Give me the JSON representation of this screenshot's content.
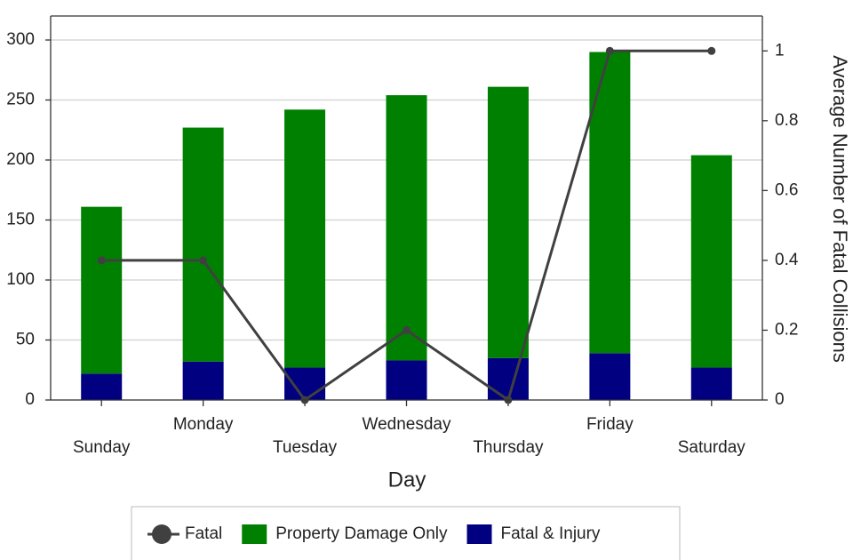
{
  "chart_data": {
    "type": "bar",
    "x_label": "Day",
    "y2_label": "Average Number of Fatal Collisions",
    "categories": [
      "Sunday",
      "Monday",
      "Tuesday",
      "Wednesday",
      "Thursday",
      "Friday",
      "Saturday"
    ],
    "series": [
      {
        "name": "Fatal & Injury",
        "color": "#000080",
        "values": [
          22,
          32,
          27,
          33,
          35,
          39,
          27
        ]
      },
      {
        "name": "Property Damage Only",
        "color": "#008000",
        "values": [
          139,
          195,
          215,
          221,
          226,
          251,
          177
        ]
      },
      {
        "name": "Fatal",
        "color": "#404040",
        "type": "line",
        "axis": "y2",
        "values": [
          0.4,
          0.4,
          0,
          0.2,
          0,
          1,
          1
        ]
      }
    ],
    "legend_order": [
      "Fatal",
      "Property Damage Only",
      "Fatal & Injury"
    ],
    "ylim": [
      0,
      320
    ],
    "yticks": [
      0,
      50,
      100,
      150,
      200,
      250,
      300
    ],
    "y2lim": [
      0,
      1.1
    ],
    "y2ticks": [
      0,
      0.2,
      0.4,
      0.6,
      0.8,
      1
    ],
    "grid": true,
    "stacked": true,
    "legend": "bottom"
  }
}
